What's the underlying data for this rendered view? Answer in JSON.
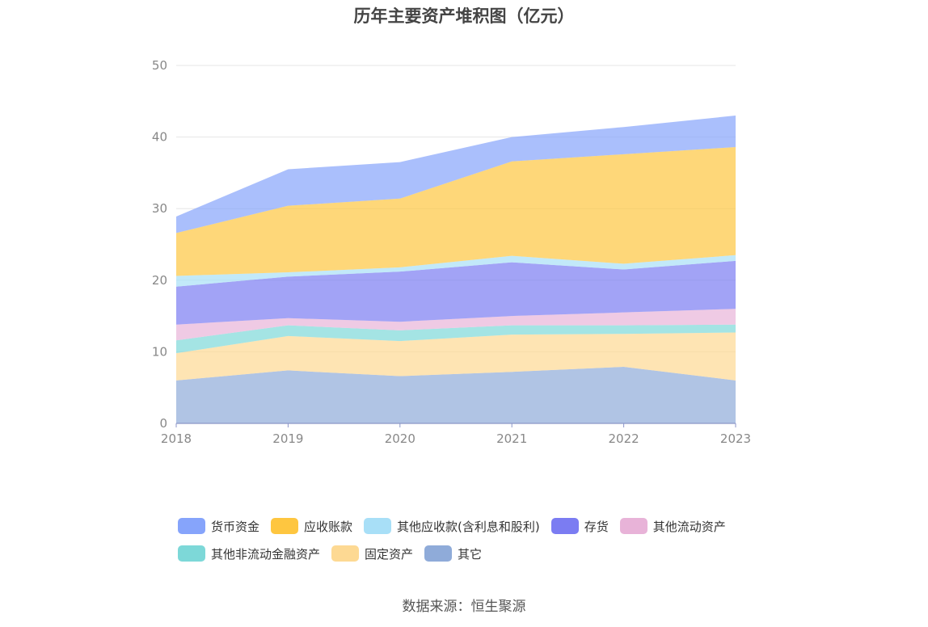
{
  "chart_data": {
    "type": "area",
    "stacked": true,
    "title": "历年主要资产堆积图（亿元）",
    "x": [
      "2018",
      "2019",
      "2020",
      "2021",
      "2022",
      "2023"
    ],
    "ylim": [
      0,
      50
    ],
    "yticks": [
      "0",
      "10",
      "20",
      "30",
      "40",
      "50"
    ],
    "grid": true,
    "legend_position": "bottom",
    "series": [
      {
        "name": "其它",
        "color": "#8fabd9",
        "values": [
          6.0,
          7.4,
          6.6,
          7.2,
          7.9,
          6.0
        ]
      },
      {
        "name": "固定资产",
        "color": "#fdd993",
        "values": [
          3.8,
          4.8,
          4.9,
          5.2,
          4.6,
          6.7
        ]
      },
      {
        "name": "其他非流动金融资产",
        "color": "#7dd8d8",
        "values": [
          1.8,
          1.5,
          1.5,
          1.3,
          1.2,
          1.1
        ]
      },
      {
        "name": "其他流动资产",
        "color": "#e8b3d8",
        "values": [
          2.2,
          1.0,
          1.2,
          1.3,
          1.8,
          2.2
        ]
      },
      {
        "name": "存货",
        "color": "#7b7cf2",
        "values": [
          5.3,
          5.8,
          7.0,
          7.5,
          6.0,
          6.7
        ]
      },
      {
        "name": "其他应收款(含利息和股利)",
        "color": "#a8dff7",
        "values": [
          1.5,
          0.6,
          0.6,
          0.9,
          0.8,
          0.8
        ]
      },
      {
        "name": "应收账款",
        "color": "#fec640",
        "values": [
          6.0,
          9.3,
          9.6,
          13.2,
          15.3,
          15.1
        ]
      },
      {
        "name": "货币资金",
        "color": "#86a4fb",
        "values": [
          2.3,
          5.1,
          5.1,
          3.4,
          3.8,
          4.4
        ]
      }
    ]
  },
  "legend": [
    {
      "label": "货币资金",
      "color": "#86a4fb"
    },
    {
      "label": "应收账款",
      "color": "#fec640"
    },
    {
      "label": "其他应收款(含利息和股利)",
      "color": "#a8dff7"
    },
    {
      "label": "存货",
      "color": "#7b7cf2"
    },
    {
      "label": "其他流动资产",
      "color": "#e8b3d8"
    },
    {
      "label": "其他非流动金融资产",
      "color": "#7dd8d8"
    },
    {
      "label": "固定资产",
      "color": "#fdd993"
    },
    {
      "label": "其它",
      "color": "#8fabd9"
    }
  ],
  "source": "数据来源：恒生聚源"
}
